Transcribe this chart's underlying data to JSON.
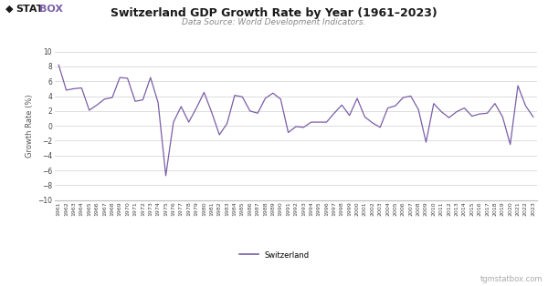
{
  "title": "Switzerland GDP Growth Rate by Year (1961–2023)",
  "subtitle": "Data Source: World Development Indicators.",
  "ylabel": "Growth Rate (%)",
  "line_color": "#7b5ea7",
  "bg_color": "#ffffff",
  "grid_color": "#dddddd",
  "ylim": [
    -10,
    10
  ],
  "yticks": [
    -10,
    -8,
    -6,
    -4,
    -2,
    0,
    2,
    4,
    6,
    8,
    10
  ],
  "years": [
    1961,
    1962,
    1963,
    1964,
    1965,
    1966,
    1967,
    1968,
    1969,
    1970,
    1971,
    1972,
    1973,
    1974,
    1975,
    1976,
    1977,
    1978,
    1979,
    1980,
    1981,
    1982,
    1983,
    1984,
    1985,
    1986,
    1987,
    1988,
    1989,
    1990,
    1991,
    1992,
    1993,
    1994,
    1995,
    1996,
    1997,
    1998,
    1999,
    2000,
    2001,
    2002,
    2003,
    2004,
    2005,
    2006,
    2007,
    2008,
    2009,
    2010,
    2011,
    2012,
    2013,
    2014,
    2015,
    2016,
    2017,
    2018,
    2019,
    2020,
    2021,
    2022,
    2023
  ],
  "values": [
    8.2,
    4.8,
    5.0,
    5.1,
    2.1,
    2.8,
    3.6,
    3.8,
    6.5,
    6.4,
    3.3,
    3.5,
    6.5,
    3.1,
    -6.7,
    0.5,
    2.6,
    0.5,
    2.4,
    4.5,
    1.8,
    -1.2,
    0.3,
    4.1,
    3.9,
    2.0,
    1.7,
    3.7,
    4.4,
    3.6,
    -0.9,
    -0.1,
    -0.2,
    0.5,
    0.5,
    0.5,
    1.7,
    2.8,
    1.4,
    3.7,
    1.2,
    0.4,
    -0.2,
    2.4,
    2.7,
    3.8,
    4.0,
    2.2,
    -2.2,
    3.0,
    1.9,
    1.1,
    1.9,
    2.4,
    1.3,
    1.6,
    1.7,
    3.0,
    1.2,
    -2.5,
    5.4,
    2.7,
    1.2
  ],
  "logo_diamond": "◆",
  "logo_stat": "STAT",
  "logo_box": "BOX",
  "legend_label": "Switzerland",
  "watermark": "tgmstatbox.com"
}
